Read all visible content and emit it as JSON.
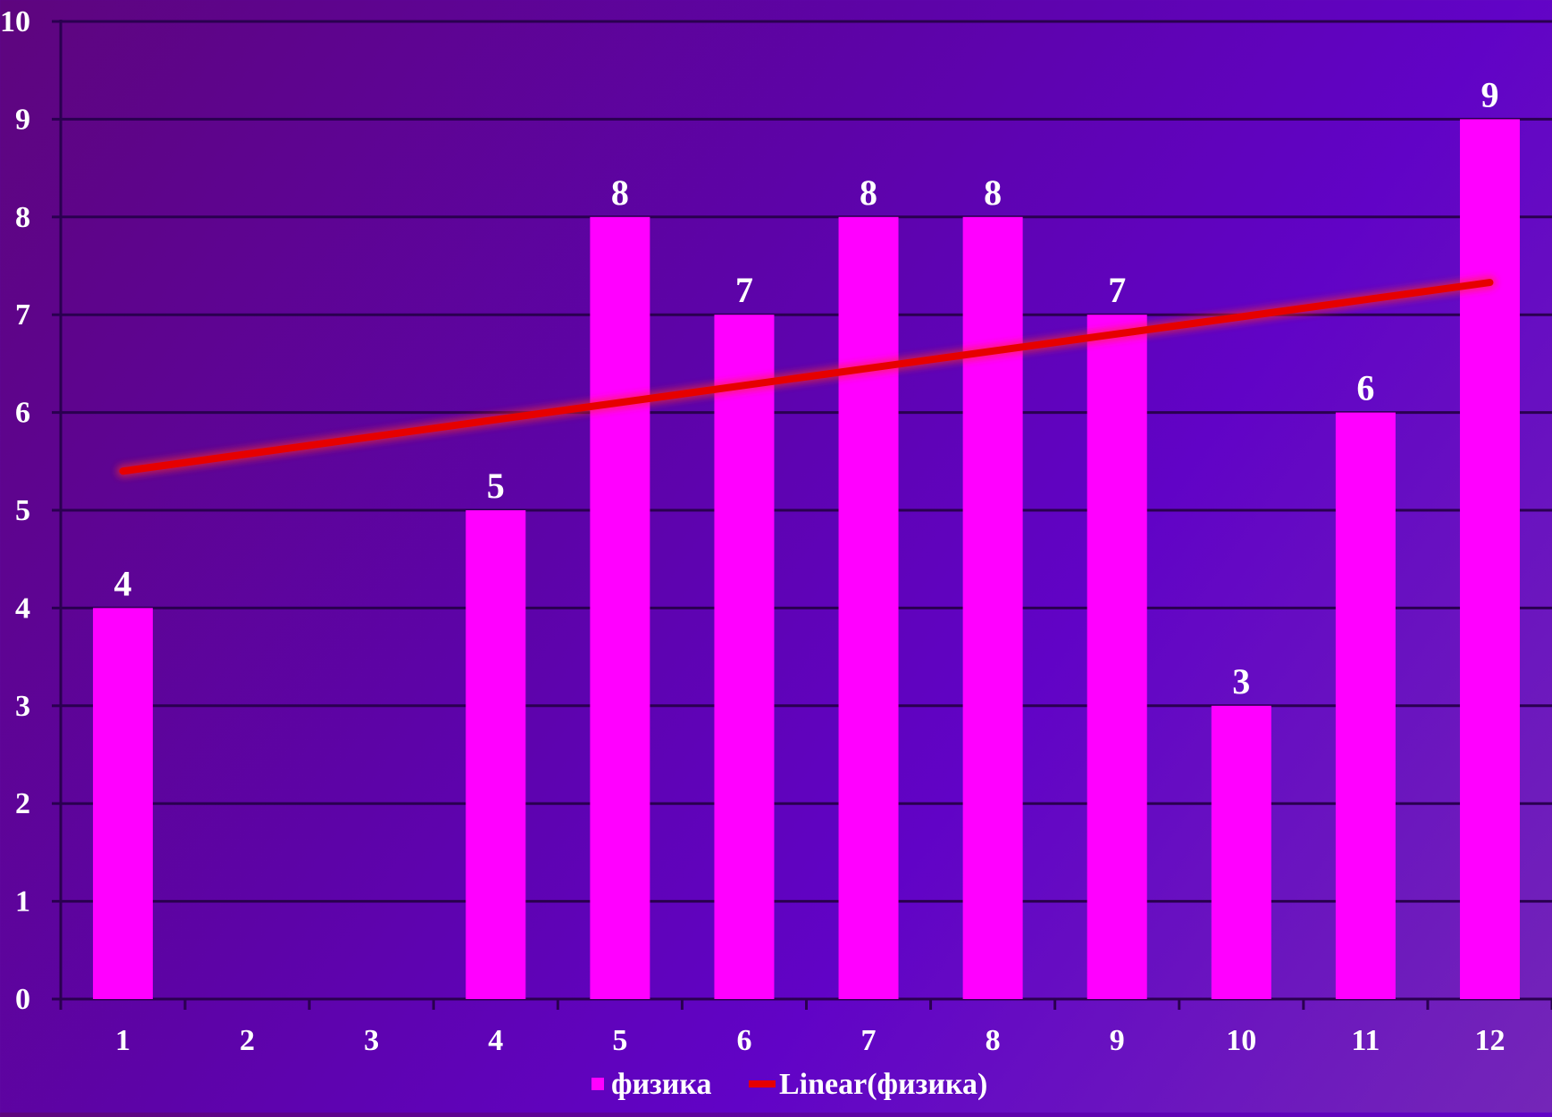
{
  "chart_data": {
    "type": "bar",
    "categories": [
      "1",
      "2",
      "3",
      "4",
      "5",
      "6",
      "7",
      "8",
      "9",
      "10",
      "11",
      "12"
    ],
    "series": [
      {
        "name": "физика",
        "values": [
          4,
          0,
          0,
          5,
          8,
          7,
          8,
          8,
          7,
          3,
          6,
          9
        ],
        "data_labels": [
          "4",
          "",
          "",
          "5",
          "8",
          "7",
          "8",
          "8",
          "7",
          "3",
          "6",
          "9"
        ]
      }
    ],
    "trendline": {
      "type": "linear",
      "name": "Linear(физика)",
      "start": {
        "x": 1,
        "y": 5.4
      },
      "end": {
        "x": 12,
        "y": 7.33
      }
    },
    "ylim": [
      0,
      10
    ],
    "yticks": [
      "0",
      "1",
      "2",
      "3",
      "4",
      "5",
      "6",
      "7",
      "8",
      "9",
      "10"
    ],
    "grid": true,
    "legend": {
      "position": "bottom",
      "entries": [
        "физика",
        "Linear(физика)"
      ]
    },
    "colors": {
      "bar": "#ff00ff",
      "trendline": "#e60000",
      "grid": "#2a0050",
      "text": "#ffffff"
    }
  }
}
